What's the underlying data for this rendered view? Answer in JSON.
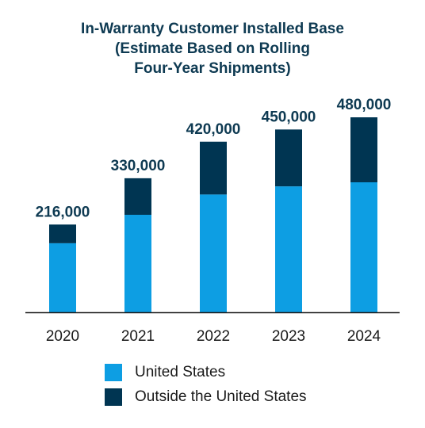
{
  "chart_data": {
    "type": "bar",
    "stacked": true,
    "title_lines": [
      "In-Warranty Customer Installed Base",
      "(Estimate Based on Rolling",
      "Four-Year Shipments)"
    ],
    "categories": [
      "2020",
      "2021",
      "2022",
      "2023",
      "2024"
    ],
    "totals_labels": [
      "216,000",
      "330,000",
      "420,000",
      "450,000",
      "480,000"
    ],
    "series": [
      {
        "name": "United States",
        "color": "#0d9ee3",
        "values": [
          170000,
          240000,
          290000,
          310000,
          320000
        ]
      },
      {
        "name": "Outside the United States",
        "color": "#003552",
        "values": [
          46000,
          90000,
          130000,
          140000,
          160000
        ]
      }
    ],
    "ylim": [
      0,
      480000
    ],
    "grid": false,
    "legend_position": "bottom"
  }
}
